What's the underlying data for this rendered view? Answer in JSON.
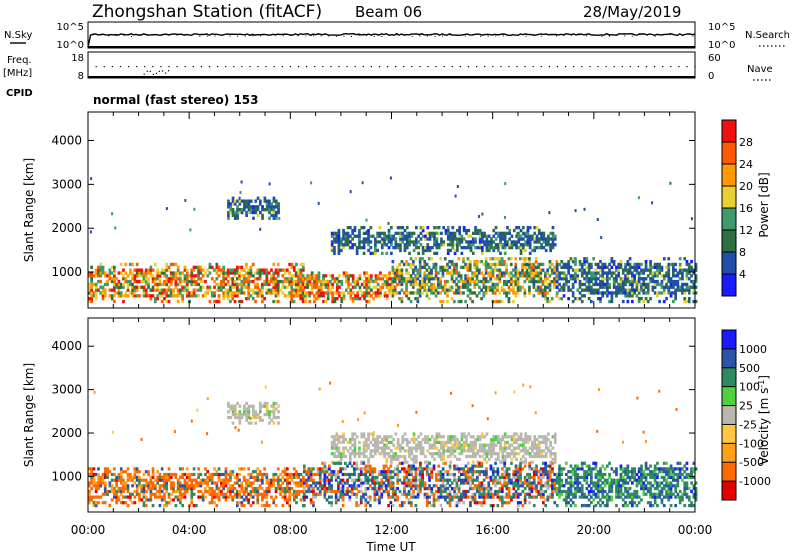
{
  "header": {
    "title": "Zhongshan Station (fitACF)",
    "beam": "Beam 06",
    "date": "28/May/2019"
  },
  "noise_panel": {
    "left_label": "N.Sky",
    "right_label": "N.Search",
    "left_ticks": [
      "10^5",
      "10^0"
    ],
    "right_ticks": [
      "10^5",
      "10^0"
    ]
  },
  "freq_panel": {
    "left_label_1": "Freq.",
    "left_label_2": "[MHz]",
    "right_label": "Nave",
    "left_ticks": [
      "18",
      "8"
    ],
    "right_ticks": [
      "60",
      "0"
    ]
  },
  "cpid": {
    "label": "CPID",
    "text": "normal (fast stereo) 153"
  },
  "colors": {
    "power": [
      "#1a1aff",
      "#1f4fa8",
      "#2e6f40",
      "#3e9a6a",
      "#e8d030",
      "#ff9a00",
      "#ff5a00",
      "#f01010"
    ],
    "velocity": [
      "#e00000",
      "#ff6a00",
      "#ffa01a",
      "#ffc840",
      "#b8b8b0",
      "#50d040",
      "#2e8a60",
      "#2a55a8",
      "#1a1aff"
    ]
  },
  "chart_data": [
    {
      "type": "heatmap",
      "name": "power",
      "ylabel": "Slant Range [km]",
      "yticks": [
        1000,
        2000,
        3000,
        4000
      ],
      "ylim": [
        180,
        4650
      ],
      "xlim": [
        0,
        24
      ],
      "colorbar": {
        "label": "Power [dB]",
        "ticks": [
          "4",
          "8",
          "12",
          "16",
          "20",
          "24",
          "28"
        ],
        "range": [
          0,
          32
        ]
      },
      "echo_regions": [
        {
          "t0": 0.0,
          "t1": 8.5,
          "r0": 300,
          "r1": 1150,
          "level": "high"
        },
        {
          "t0": 5.5,
          "t1": 7.5,
          "r0": 2200,
          "r1": 2700,
          "level": "low"
        },
        {
          "t0": 9.6,
          "t1": 18.5,
          "r0": 1400,
          "r1": 2000,
          "level": "low"
        },
        {
          "t0": 8.0,
          "t1": 12.0,
          "r0": 300,
          "r1": 1000,
          "level": "high"
        },
        {
          "t0": 12.0,
          "t1": 18.5,
          "r0": 300,
          "r1": 1300,
          "level": "medium"
        },
        {
          "t0": 18.5,
          "t1": 24.0,
          "r0": 300,
          "r1": 1300,
          "level": "low"
        }
      ]
    },
    {
      "type": "heatmap",
      "name": "velocity",
      "ylabel": "Slant Range [km]",
      "xlabel": "Time UT",
      "xticks": [
        "00:00",
        "04:00",
        "08:00",
        "12:00",
        "16:00",
        "20:00",
        "00:00"
      ],
      "yticks": [
        1000,
        2000,
        3000,
        4000
      ],
      "ylim": [
        180,
        4650
      ],
      "xlim": [
        0,
        24
      ],
      "colorbar": {
        "label": "Velocity [m s^-1]",
        "ticks": [
          "-1000",
          "-500",
          "-100",
          "-25",
          "25",
          "100",
          "500",
          "1000"
        ]
      },
      "echo_regions": [
        {
          "t0": 0.0,
          "t1": 8.5,
          "r0": 300,
          "r1": 1200,
          "level": "negative"
        },
        {
          "t0": 5.5,
          "t1": 7.5,
          "r0": 2200,
          "r1": 2700,
          "level": "near-zero"
        },
        {
          "t0": 9.6,
          "t1": 18.5,
          "r0": 1300,
          "r1": 2000,
          "level": "near-zero"
        },
        {
          "t0": 8.5,
          "t1": 18.5,
          "r0": 300,
          "r1": 1300,
          "level": "mixed"
        },
        {
          "t0": 18.5,
          "t1": 24.0,
          "r0": 300,
          "r1": 1300,
          "level": "positive"
        }
      ]
    }
  ]
}
